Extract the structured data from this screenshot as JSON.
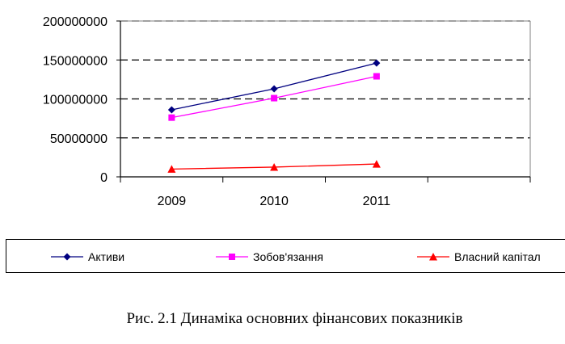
{
  "chart_data": {
    "type": "line",
    "categories": [
      "2009",
      "2010",
      "2011"
    ],
    "series": [
      {
        "name": "Активи",
        "values": [
          86000000,
          113000000,
          146000000
        ],
        "color": "#000080",
        "marker": "diamond"
      },
      {
        "name": "Зобов'язання",
        "values": [
          76000000,
          101000000,
          129000000
        ],
        "color": "#ff00ff",
        "marker": "square"
      },
      {
        "name": "Власний капітал",
        "values": [
          10000000,
          12500000,
          16500000
        ],
        "color": "#ff0000",
        "marker": "triangle"
      }
    ],
    "ylim": [
      0,
      200000000
    ],
    "yticks": [
      "0",
      "50000000",
      "100000000",
      "150000000",
      "200000000"
    ],
    "grid": "horizontal dashed",
    "legend_position": "bottom",
    "title": "",
    "xlabel": "",
    "ylabel": ""
  },
  "caption": "Рис. 2.1 Динаміка основних фінансових показників"
}
